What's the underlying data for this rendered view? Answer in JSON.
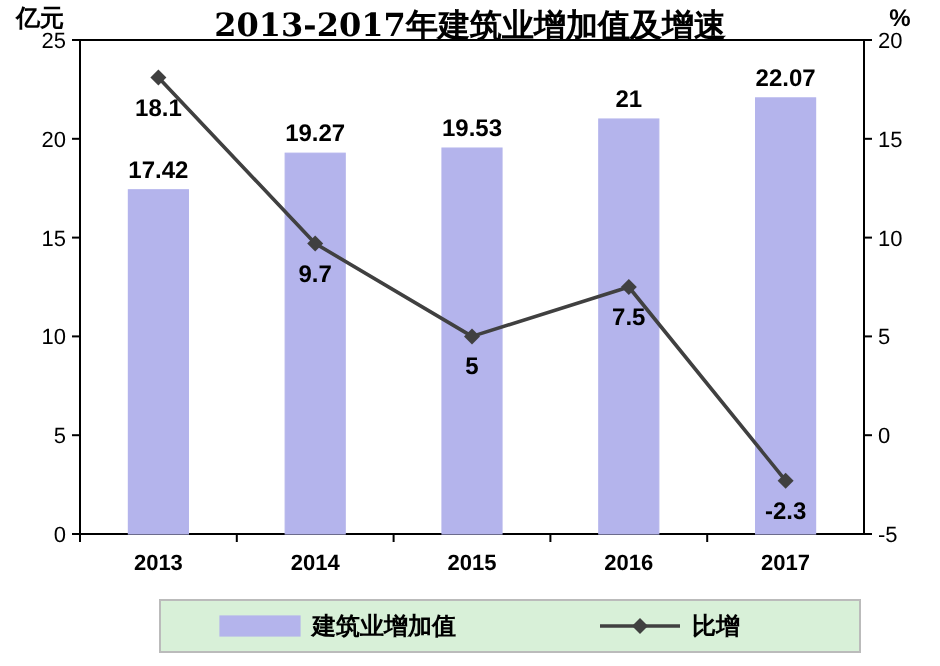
{
  "chart_data": {
    "type": "bar",
    "title": "2013-2017年建筑业增加值及增速",
    "categories": [
      "2013",
      "2014",
      "2015",
      "2016",
      "2017"
    ],
    "series": [
      {
        "name": "建筑业增加值",
        "color": "#b4b4ec",
        "values": [
          17.42,
          19.27,
          19.53,
          21,
          22.07
        ]
      },
      {
        "name": "比增",
        "type": "line",
        "axis": "y2",
        "color": "#404040",
        "values": [
          18.1,
          9.7,
          5,
          7.5,
          -2.3
        ]
      }
    ],
    "ylabel": "亿元",
    "y2label": "%",
    "ylim": [
      0,
      25
    ],
    "yticks": [
      0,
      5,
      10,
      15,
      20,
      25
    ],
    "y2lim": [
      -5,
      20
    ],
    "y2ticks": [
      -5,
      0,
      5,
      10,
      15,
      20
    ],
    "data_labels": true,
    "legend": "bottom",
    "marker": "diamond",
    "line_style": "solid",
    "grid": false
  }
}
